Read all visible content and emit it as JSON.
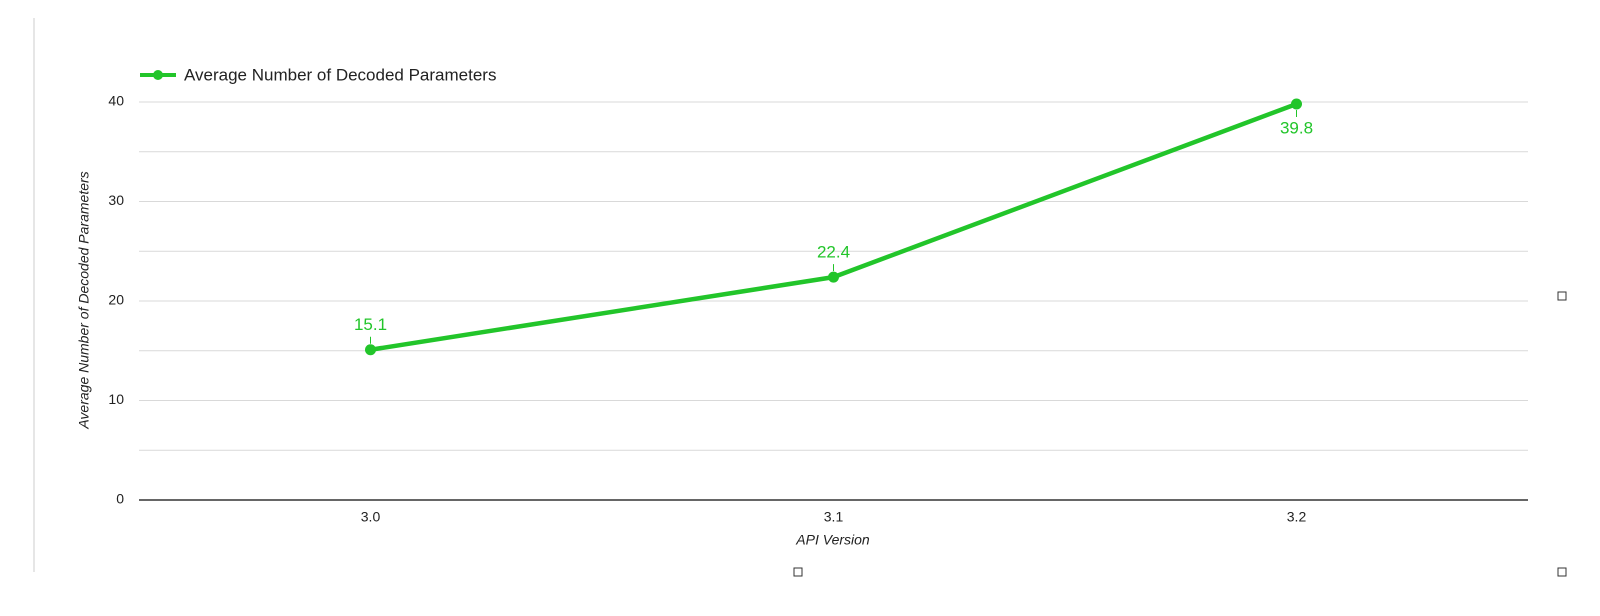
{
  "chart_data": {
    "type": "line",
    "legend_position": "top",
    "x_label": "API Version",
    "y_label": "Average Number of Decoded Parameters",
    "categories": [
      "3.0",
      "3.1",
      "3.2"
    ],
    "series": [
      {
        "name": "Average Number of Decoded Parameters",
        "color": "#22c52a",
        "values": [
          15.1,
          22.4,
          39.8
        ]
      }
    ],
    "ylim": [
      0,
      40
    ],
    "yticks": [
      0,
      10,
      20,
      30,
      40
    ],
    "minor_yticks": [
      5,
      15,
      25,
      35
    ],
    "grid": true
  }
}
